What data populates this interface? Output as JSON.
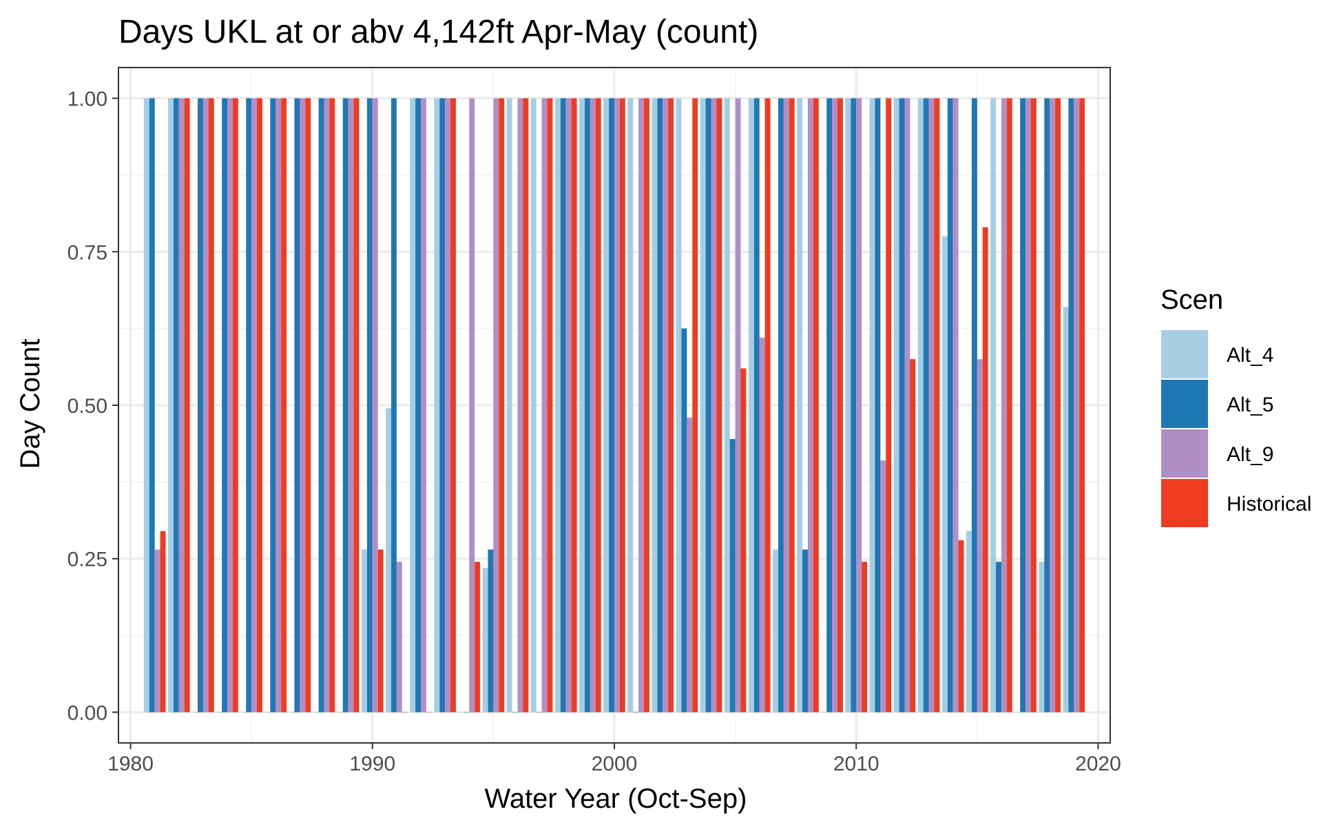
{
  "chart_data": {
    "type": "bar",
    "title": "Days UKL at or abv 4,142ft Apr-May (count)",
    "xlabel": "Water Year (Oct-Sep)",
    "ylabel": "Day Count",
    "xlim": [
      1979.5,
      2020.5
    ],
    "ylim": [
      -0.05,
      1.05
    ],
    "xticks": [
      1980,
      1990,
      2000,
      2010,
      2020
    ],
    "yticks": [
      "0.00",
      "0.25",
      "0.50",
      "0.75",
      "1.00"
    ],
    "grid": true,
    "legend_title": "Scen",
    "legend_position": "right",
    "x": [
      1981,
      1982,
      1983,
      1984,
      1985,
      1986,
      1987,
      1988,
      1989,
      1990,
      1991,
      1992,
      1993,
      1994,
      1995,
      1996,
      1997,
      1998,
      1999,
      2000,
      2001,
      2002,
      2003,
      2004,
      2005,
      2006,
      2007,
      2008,
      2009,
      2010,
      2011,
      2012,
      2013,
      2014,
      2015,
      2016,
      2017,
      2018,
      2019
    ],
    "series": [
      {
        "name": "Alt_4",
        "color": "#a6cee3",
        "values": [
          1,
          1,
          0,
          0,
          0,
          0,
          0,
          0,
          0,
          0.265,
          0.495,
          1,
          1,
          0,
          0.235,
          1,
          1,
          1,
          1,
          1,
          1,
          1,
          1,
          1,
          1,
          1,
          0.265,
          1,
          0,
          1,
          1,
          1,
          1,
          0.775,
          0.295,
          1,
          0,
          0.245,
          0.66
        ]
      },
      {
        "name": "Alt_5",
        "color": "#1f78b4",
        "values": [
          1,
          1,
          1,
          1,
          1,
          1,
          1,
          1,
          1,
          1,
          1,
          1,
          1,
          0,
          0.265,
          0,
          0,
          1,
          1,
          1,
          0,
          1,
          0.625,
          1,
          0.445,
          1,
          1,
          0.265,
          1,
          1,
          1,
          1,
          1,
          1,
          1,
          0.245,
          1,
          1,
          1
        ]
      },
      {
        "name": "Alt_9",
        "color": "#b08fc6",
        "values": [
          0.265,
          1,
          1,
          1,
          1,
          1,
          1,
          1,
          1,
          1,
          0.245,
          1,
          1,
          1,
          1,
          1,
          1,
          1,
          1,
          1,
          1,
          1,
          0.48,
          1,
          1,
          0.61,
          1,
          1,
          1,
          1,
          0.41,
          1,
          1,
          1,
          0.575,
          1,
          1,
          1,
          1
        ]
      },
      {
        "name": "Historical",
        "color": "#f03b20",
        "values": [
          0.295,
          1,
          1,
          1,
          1,
          1,
          1,
          1,
          1,
          0.265,
          0,
          0,
          1,
          0.245,
          1,
          1,
          1,
          1,
          1,
          1,
          1,
          1,
          1,
          1,
          0.56,
          1,
          1,
          1,
          1,
          0.245,
          1,
          0.575,
          1,
          0.28,
          0.79,
          1,
          1,
          1,
          1
        ]
      }
    ]
  }
}
